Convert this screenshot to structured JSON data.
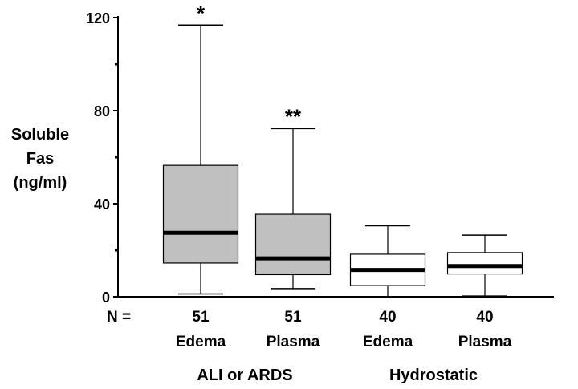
{
  "chart_data": {
    "type": "boxplot",
    "ylabel": [
      "Soluble",
      "Fas",
      "(ng/ml)"
    ],
    "ylim": [
      0,
      120
    ],
    "yticks": [
      0,
      40,
      80,
      120
    ],
    "n_label": "N =",
    "boxes": [
      {
        "category": "Edema",
        "group": "ALI or ARDS",
        "n": "51",
        "fill": "#c0c0c0",
        "min": 1.2,
        "q1": 14.5,
        "median": 27.5,
        "q3": 56.5,
        "max": 116.8,
        "annotation": "*"
      },
      {
        "category": "Plasma",
        "group": "ALI or ARDS",
        "n": "51",
        "fill": "#c0c0c0",
        "min": 3.5,
        "q1": 9.5,
        "median": 16.5,
        "q3": 35.5,
        "max": 72.3,
        "annotation": "**"
      },
      {
        "category": "Edema",
        "group": "Hydrostatic",
        "n": "40",
        "fill": "#ffffff",
        "min": 0,
        "q1": 4.8,
        "median": 11.5,
        "q3": 18.3,
        "max": 30.5,
        "annotation": ""
      },
      {
        "category": "Plasma",
        "group": "Hydrostatic",
        "n": "40",
        "fill": "#ffffff",
        "min": 0.3,
        "q1": 9.8,
        "median": 13.2,
        "q3": 19,
        "max": 26.5,
        "annotation": ""
      }
    ],
    "groups": [
      "ALI or ARDS",
      "Hydrostatic"
    ],
    "grid": false
  }
}
